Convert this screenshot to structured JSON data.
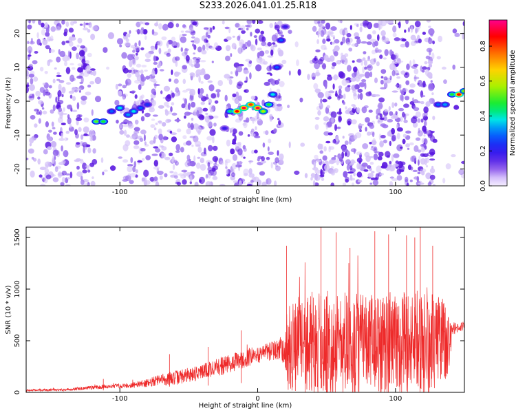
{
  "title": "S233.2026.041.01.25.R18",
  "colors": {
    "line": "#ee2a2a",
    "spec_main": "#5a18e0",
    "spec_faint": "#d4c2f8",
    "spec_mid": "#9a70ee"
  },
  "chart_data": [
    {
      "type": "heatmap",
      "xlabel": "Height of straight line (km)",
      "ylabel": "Frequency (Hz)",
      "xlim": [
        -168,
        150
      ],
      "ylim": [
        -25,
        24
      ],
      "xticks": [
        -100,
        0,
        100
      ],
      "xtick_labels": [
        "-100",
        "0",
        "100"
      ],
      "yticks": [
        -20,
        -10,
        0,
        10,
        20
      ],
      "ytick_labels": [
        "-20",
        "-10",
        "0",
        "10",
        "20"
      ],
      "colorbar": {
        "label": "Normalized spectral amplitude",
        "range": [
          0.0,
          0.95
        ],
        "ticks": [
          0.0,
          0.2,
          0.4,
          0.6,
          0.8
        ],
        "tick_labels": [
          "0.0",
          "0.2",
          "0.4",
          "0.6",
          "0.8"
        ]
      },
      "sparse_bands": [
        [
          -118,
          -100
        ],
        [
          -79,
          -77
        ],
        [
          -30,
          -23
        ],
        [
          18,
          40
        ],
        [
          128,
          150
        ]
      ],
      "ridge": {
        "x": [
          -117,
          -112,
          -106,
          -100,
          -94,
          -90,
          -85,
          -80,
          -24,
          -20,
          -15,
          -10,
          -5,
          0,
          4,
          8,
          11,
          14,
          17,
          20,
          131,
          136,
          141,
          146,
          150
        ],
        "y": [
          -6,
          -6,
          -3,
          -2,
          -4,
          -3,
          -2,
          -1,
          -8,
          -3,
          -3,
          -2,
          -1,
          -2,
          -3,
          -1,
          2,
          10,
          18,
          22,
          -1,
          -1,
          2,
          2,
          3
        ],
        "amplitude": [
          0.55,
          0.5,
          0.3,
          0.4,
          0.35,
          0.4,
          0.3,
          0.25,
          0.2,
          0.45,
          0.9,
          0.95,
          0.85,
          0.95,
          0.6,
          0.5,
          0.4,
          0.3,
          0.3,
          0.2,
          0.3,
          0.35,
          0.5,
          0.9,
          0.6
        ]
      }
    },
    {
      "type": "line",
      "xlabel": "Height of straight line (km)",
      "ylabel": "SNR (10 * v/v)",
      "xlim": [
        -168,
        150
      ],
      "ylim": [
        0,
        1600
      ],
      "xticks": [
        -100,
        0,
        100
      ],
      "xtick_labels": [
        "-100",
        "0",
        "100"
      ],
      "yticks": [
        0,
        500,
        1000,
        1500
      ],
      "ytick_labels": [
        "0",
        "500",
        "1000",
        "1500"
      ],
      "envelope_x": [
        -168,
        -140,
        -112,
        -105,
        -90,
        -80,
        -70,
        -60,
        -50,
        -40,
        -30,
        -20,
        -10,
        0,
        10,
        15,
        20,
        22,
        30,
        40,
        50,
        60,
        70,
        80,
        90,
        100,
        110,
        120,
        130,
        138,
        142,
        150
      ],
      "envelope_mean": [
        20,
        25,
        55,
        60,
        70,
        90,
        120,
        140,
        170,
        200,
        240,
        280,
        320,
        360,
        400,
        420,
        430,
        450,
        420,
        480,
        470,
        450,
        460,
        450,
        460,
        470,
        480,
        460,
        470,
        500,
        620,
        640
      ],
      "envelope_spread": [
        10,
        12,
        20,
        20,
        30,
        40,
        60,
        70,
        70,
        80,
        90,
        90,
        90,
        80,
        90,
        100,
        200,
        450,
        480,
        500,
        520,
        520,
        500,
        500,
        520,
        520,
        520,
        520,
        500,
        350,
        60,
        50
      ],
      "spikes": [
        [
          -112,
          130
        ],
        [
          -64,
          370
        ],
        [
          -36,
          440
        ],
        [
          -12,
          600
        ],
        [
          21,
          1420
        ],
        [
          46,
          1600
        ],
        [
          57,
          1550
        ],
        [
          67,
          1400
        ],
        [
          85,
          1560
        ],
        [
          95,
          1530
        ],
        [
          108,
          1520
        ],
        [
          114,
          1500
        ],
        [
          118,
          1600
        ],
        [
          127,
          1420
        ]
      ]
    }
  ]
}
